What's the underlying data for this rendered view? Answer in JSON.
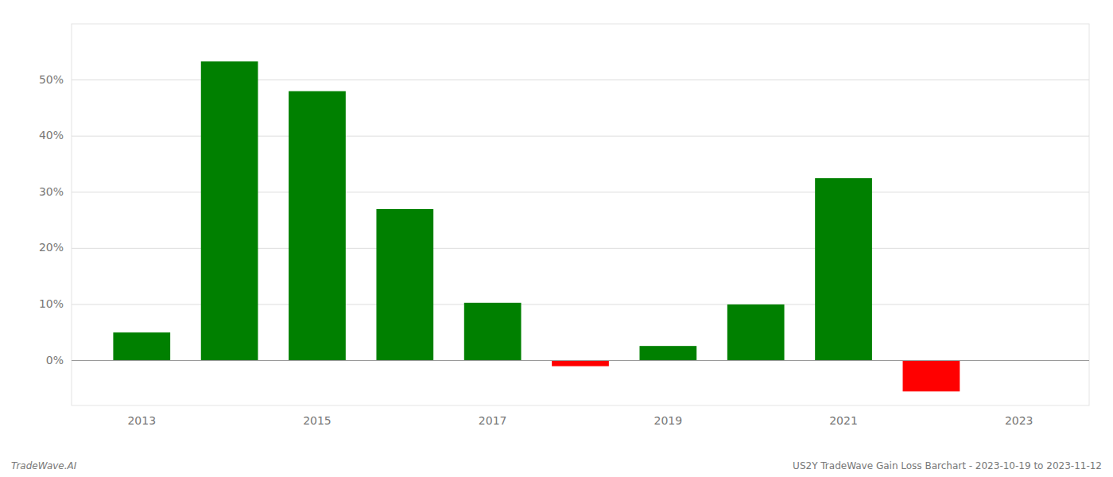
{
  "chart_data": {
    "type": "bar",
    "x": [
      2013,
      2014,
      2015,
      2016,
      2017,
      2018,
      2019,
      2020,
      2021,
      2022
    ],
    "values": [
      0.05,
      0.533,
      0.48,
      0.27,
      0.103,
      -0.01,
      0.026,
      0.1,
      0.325,
      -0.055
    ],
    "colors": [
      "#008000",
      "#008000",
      "#008000",
      "#008000",
      "#008000",
      "#ff0000",
      "#008000",
      "#008000",
      "#008000",
      "#ff0000"
    ],
    "xlim": [
      2012.2,
      2023.8
    ],
    "xticks": [
      2013,
      2015,
      2017,
      2019,
      2021,
      2023
    ],
    "ylim": [
      -0.08,
      0.6
    ],
    "yticks": [
      {
        "value": 0.0,
        "label": "0%"
      },
      {
        "value": 0.1,
        "label": "10%"
      },
      {
        "value": 0.2,
        "label": "20%"
      },
      {
        "value": 0.3,
        "label": "30%"
      },
      {
        "value": 0.4,
        "label": "40%"
      },
      {
        "value": 0.5,
        "label": "50%"
      }
    ],
    "grid": true,
    "annotations": [
      "TradeWave.AI",
      "US2Y TradeWave Gain Loss Barchart - 2023-10-19 to 2023-11-12"
    ]
  }
}
